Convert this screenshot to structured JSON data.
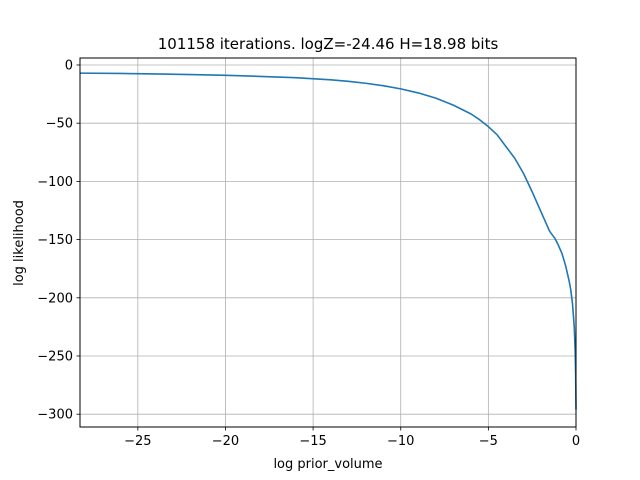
{
  "chart_data": {
    "type": "line",
    "title": "101158 iterations. logZ=-24.46 H=18.98 bits",
    "xlabel": "log prior_volume",
    "ylabel": "log likelihood",
    "xlim": [
      -28.3,
      0
    ],
    "ylim": [
      -311,
      6
    ],
    "xticks": [
      -25,
      -20,
      -15,
      -10,
      -5,
      0
    ],
    "yticks": [
      0,
      -50,
      -100,
      -150,
      -200,
      -250,
      -300
    ],
    "grid": true,
    "line_color": "#1f77b4",
    "series": [
      {
        "x": [
          -28.3,
          -26,
          -24,
          -22,
          -20,
          -18,
          -16,
          -14,
          -13,
          -12,
          -11,
          -10,
          -9,
          -8,
          -7,
          -6,
          -5.5,
          -5,
          -4.5,
          -4,
          -3.5,
          -3,
          -2.5,
          -2,
          -1.5,
          -1.2,
          -1,
          -0.8,
          -0.6,
          -0.4,
          -0.3,
          -0.2,
          -0.1,
          -0.05,
          -0.02,
          0
        ],
        "y": [
          -7,
          -7.3,
          -7.7,
          -8.2,
          -8.9,
          -9.8,
          -10.9,
          -12.7,
          -14,
          -15.7,
          -17.8,
          -20.5,
          -24,
          -28.5,
          -34.5,
          -42,
          -47,
          -53,
          -60,
          -70,
          -80,
          -93,
          -109,
          -126,
          -143,
          -149,
          -155,
          -162,
          -172,
          -185,
          -193,
          -205,
          -225,
          -245,
          -265,
          -296
        ]
      }
    ]
  }
}
